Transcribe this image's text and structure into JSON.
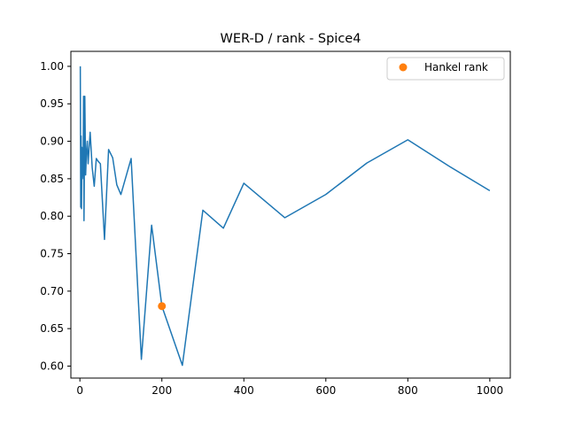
{
  "chart_data": {
    "type": "line",
    "title": "WER-D / rank - Spice4",
    "xlabel": "",
    "ylabel": "",
    "xlim": [
      -22,
      1050
    ],
    "ylim": [
      0.584,
      1.02
    ],
    "xticks": [
      0,
      200,
      400,
      600,
      800,
      1000
    ],
    "xtick_labels": [
      "0",
      "200",
      "400",
      "600",
      "800",
      "1000"
    ],
    "yticks": [
      0.6,
      0.65,
      0.7,
      0.75,
      0.8,
      0.85,
      0.9,
      0.95,
      1.0
    ],
    "ytick_labels": [
      "0.60",
      "0.65",
      "0.70",
      "0.75",
      "0.80",
      "0.85",
      "0.90",
      "0.95",
      "1.00"
    ],
    "grid": false,
    "legend_position": "top-right",
    "series": [
      {
        "name": "",
        "color": "#1f77b4",
        "x": [
          1,
          2,
          3,
          4,
          5,
          6,
          7,
          8,
          9,
          10,
          12,
          14,
          16,
          18,
          20,
          25,
          30,
          35,
          40,
          45,
          50,
          60,
          70,
          80,
          90,
          100,
          125,
          150,
          175,
          200,
          250,
          300,
          350,
          400,
          500,
          600,
          700,
          800,
          900,
          1000
        ],
        "y": [
          1.0,
          0.812,
          0.907,
          0.81,
          0.892,
          0.85,
          0.86,
          0.86,
          0.96,
          0.794,
          0.96,
          0.855,
          0.885,
          0.9,
          0.87,
          0.912,
          0.865,
          0.84,
          0.877,
          0.873,
          0.87,
          0.769,
          0.889,
          0.878,
          0.842,
          0.829,
          0.877,
          0.609,
          0.788,
          0.68,
          0.601,
          0.808,
          0.784,
          0.844,
          0.798,
          0.829,
          0.871,
          0.902,
          0.867,
          0.834
        ]
      },
      {
        "name": "Hankel rank",
        "color": "#ff7f0e",
        "marker": "circle",
        "x": [
          200
        ],
        "y": [
          0.68
        ]
      }
    ]
  }
}
